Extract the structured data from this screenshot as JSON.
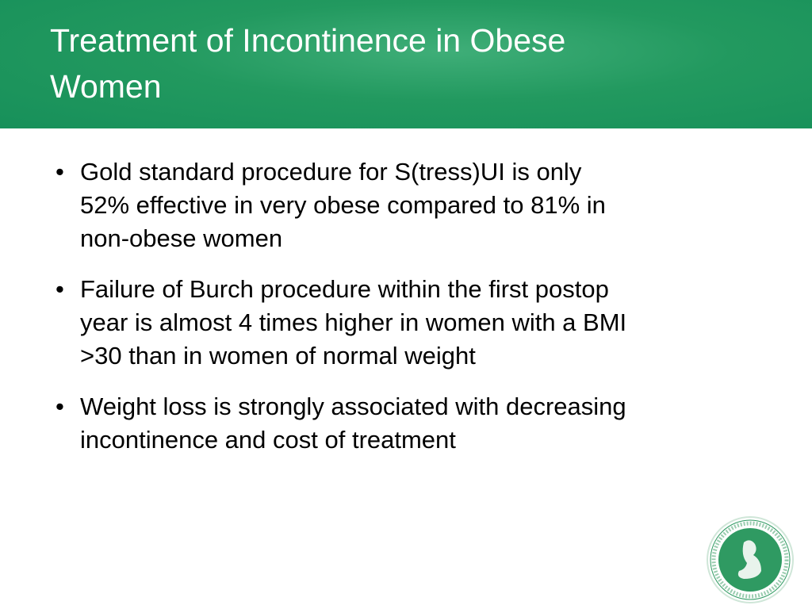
{
  "header": {
    "title_lines": [
      "Treatment of Incontinence in Obese",
      "Women"
    ]
  },
  "bullets": [
    {
      "lines": [
        "Gold standard procedure for S(tress)UI is only",
        "52% effective in very obese compared to 81% in",
        "non-obese women"
      ]
    },
    {
      "lines": [
        "Failure of Burch procedure within the first postop",
        "year is almost 4 times higher in women with a BMI",
        ">30 than in women of normal weight"
      ]
    },
    {
      "lines": [
        "Weight loss is strongly associated with decreasing",
        "incontinence and cost of treatment"
      ]
    }
  ]
}
